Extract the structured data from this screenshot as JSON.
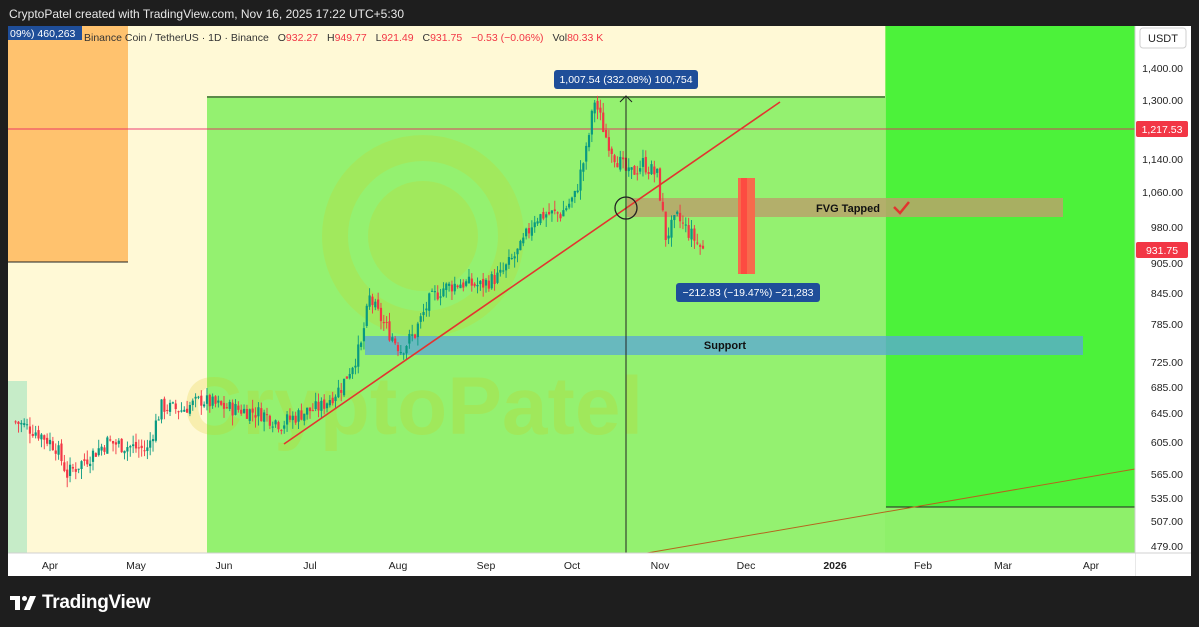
{
  "header": {
    "text": "CryptoPatel created with TradingView.com, Nov 16, 2025 17:22 UTC+5:30"
  },
  "footer": {
    "brand": "TradingView",
    "logo_icon": "tradingview-logo-icon"
  },
  "symbol": {
    "name": "Binance Coin / TetherUS · 1D · Binance",
    "open_label": "O",
    "open": "932.27",
    "high_label": "H",
    "high": "949.77",
    "low_label": "L",
    "low": "921.49",
    "close_label": "C",
    "close": "931.75",
    "change": "−0.53 (−0.06%)",
    "vol_label": "Vol",
    "vol": "80.33 K",
    "measure_badge": "09%) 460,263"
  },
  "colors": {
    "bull": "#089981",
    "bear": "#f23645",
    "zone_green": "#8ef06a",
    "zone_bright": "#4cf23a",
    "zone_orange": "#ffb85c",
    "support": "#5aa6d8",
    "fvg": "#b9a36a",
    "trendline": "#e3342f",
    "price_tag": "#f23645"
  },
  "chart_data": {
    "type": "candlestick",
    "title": "Binance Coin / TetherUS · 1D · Binance",
    "currency": "USDT",
    "y_ticks": [
      "1,400.00",
      "1,300.00",
      "1,140.00",
      "1,060.00",
      "980.00",
      "905.00",
      "845.00",
      "785.00",
      "725.00",
      "685.00",
      "645.00",
      "605.00",
      "565.00",
      "535.00",
      "507.00",
      "479.00"
    ],
    "x_ticks": [
      "Apr",
      "May",
      "Jun",
      "Jul",
      "Aug",
      "Sep",
      "Oct",
      "Nov",
      "Dec",
      "2026",
      "Feb",
      "Mar",
      "Apr"
    ],
    "price_tags": [
      {
        "value": "1,217.53",
        "kind": "horizontal-line"
      },
      {
        "value": "931.75",
        "kind": "last-price"
      }
    ],
    "annotations": [
      {
        "label": "FVG Tapped",
        "kind": "zone"
      },
      {
        "label": "Support",
        "kind": "zone"
      },
      {
        "label": "1,007.54 (332.08%) 100,754",
        "kind": "measure-up"
      },
      {
        "label": "−212.83 (−19.47%) −21,283",
        "kind": "measure-down"
      },
      {
        "label": "CryptoPatel",
        "kind": "watermark"
      }
    ],
    "ohlc_last": {
      "open": 932.27,
      "high": 949.77,
      "low": 921.49,
      "close": 931.75
    },
    "series": [
      {
        "kind": "daily-close",
        "points": [
          [
            "2025-03-20",
            633
          ],
          [
            "2025-03-27",
            620
          ],
          [
            "2025-04-03",
            600
          ],
          [
            "2025-04-07",
            565
          ],
          [
            "2025-04-14",
            585
          ],
          [
            "2025-04-21",
            605
          ],
          [
            "2025-04-28",
            600
          ],
          [
            "2025-05-05",
            595
          ],
          [
            "2025-05-10",
            655
          ],
          [
            "2025-05-17",
            650
          ],
          [
            "2025-05-24",
            665
          ],
          [
            "2025-05-31",
            655
          ],
          [
            "2025-06-07",
            650
          ],
          [
            "2025-06-14",
            645
          ],
          [
            "2025-06-21",
            630
          ],
          [
            "2025-06-28",
            645
          ],
          [
            "2025-07-05",
            655
          ],
          [
            "2025-07-12",
            685
          ],
          [
            "2025-07-19",
            750
          ],
          [
            "2025-07-22",
            835
          ],
          [
            "2025-07-27",
            785
          ],
          [
            "2025-08-02",
            745
          ],
          [
            "2025-08-07",
            770
          ],
          [
            "2025-08-12",
            830
          ],
          [
            "2025-08-17",
            855
          ],
          [
            "2025-08-23",
            865
          ],
          [
            "2025-08-30",
            860
          ],
          [
            "2025-09-06",
            880
          ],
          [
            "2025-09-13",
            935
          ],
          [
            "2025-09-18",
            1000
          ],
          [
            "2025-09-22",
            1010
          ],
          [
            "2025-09-27",
            1010
          ],
          [
            "2025-10-02",
            1050
          ],
          [
            "2025-10-06",
            1160
          ],
          [
            "2025-10-09",
            1300
          ],
          [
            "2025-10-13",
            1200
          ],
          [
            "2025-10-16",
            1150
          ],
          [
            "2025-10-21",
            1100
          ],
          [
            "2025-10-26",
            1130
          ],
          [
            "2025-10-31",
            1100
          ],
          [
            "2025-11-03",
            960
          ],
          [
            "2025-11-07",
            1000
          ],
          [
            "2025-11-11",
            970
          ],
          [
            "2025-11-16",
            931.75
          ]
        ]
      }
    ]
  }
}
